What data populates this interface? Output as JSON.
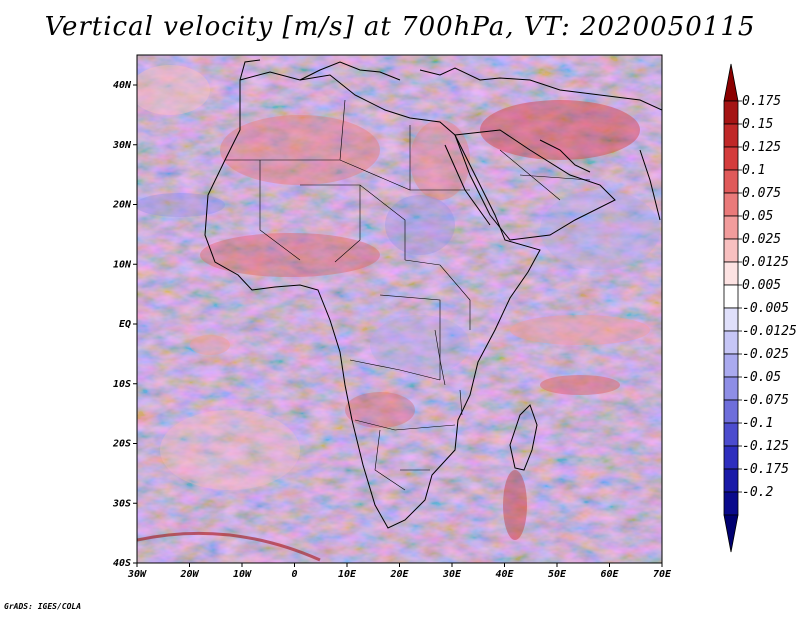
{
  "title": "Vertical velocity [m/s] at 700hPa, VT: 2020050115",
  "credit": "GrADS: IGES/COLA",
  "map": {
    "lon_ticks": [
      "30W",
      "20W",
      "10W",
      "0",
      "10E",
      "20E",
      "30E",
      "40E",
      "50E",
      "60E",
      "70E"
    ],
    "lat_ticks": [
      "40N",
      "30N",
      "20N",
      "10N",
      "EQ",
      "10S",
      "20S",
      "30S",
      "40S"
    ]
  },
  "colorbar": {
    "labels": [
      "0.175",
      "0.15",
      "0.125",
      "0.1",
      "0.075",
      "0.05",
      "0.025",
      "0.0125",
      "0.005",
      "-0.005",
      "-0.0125",
      "-0.025",
      "-0.05",
      "-0.075",
      "-0.1",
      "-0.125",
      "-0.175",
      "-0.2"
    ],
    "colors": [
      "#8b0000",
      "#a51414",
      "#c02828",
      "#d43c3c",
      "#e05a5a",
      "#ea7a7a",
      "#f29c9c",
      "#f8c0c0",
      "#fde3e3",
      "#ffffff",
      "#e0e0fb",
      "#c6c6f6",
      "#aaaaef",
      "#8e8ee6",
      "#6e6edb",
      "#4c4cce",
      "#2e2ebe",
      "#1a1aa8",
      "#0a0a8c",
      "#000070"
    ]
  }
}
